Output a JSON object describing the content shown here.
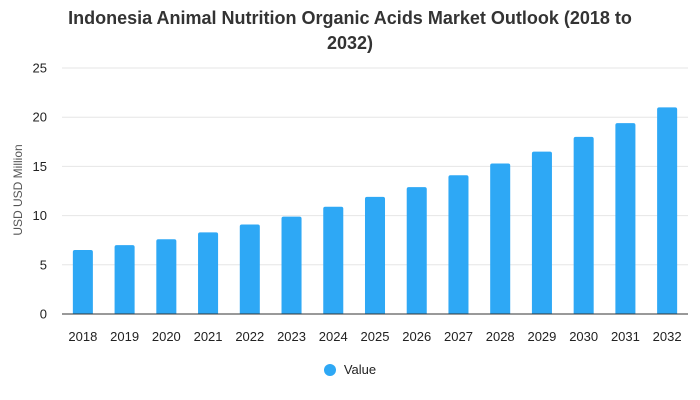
{
  "colors": {
    "bar": "#2ea8f5",
    "grid": "#e6e6e6",
    "axis": "#333333"
  },
  "chart_data": {
    "type": "bar",
    "title_line1": "Indonesia Animal Nutrition Organic Acids Market Outlook (2018 to",
    "title_line2": "2032)",
    "xlabel": "",
    "ylabel": "USD USD Million",
    "ylim": [
      0,
      25
    ],
    "yticks": [
      0,
      5,
      10,
      15,
      20,
      25
    ],
    "grid": true,
    "legend_position": "bottom-center",
    "categories": [
      "2018",
      "2019",
      "2020",
      "2021",
      "2022",
      "2023",
      "2024",
      "2025",
      "2026",
      "2027",
      "2028",
      "2029",
      "2030",
      "2031",
      "2032"
    ],
    "series": [
      {
        "name": "Value",
        "values": [
          6.5,
          7.0,
          7.6,
          8.3,
          9.1,
          9.9,
          10.9,
          11.9,
          12.9,
          14.1,
          15.3,
          16.5,
          18.0,
          19.4,
          21.0
        ]
      }
    ]
  }
}
